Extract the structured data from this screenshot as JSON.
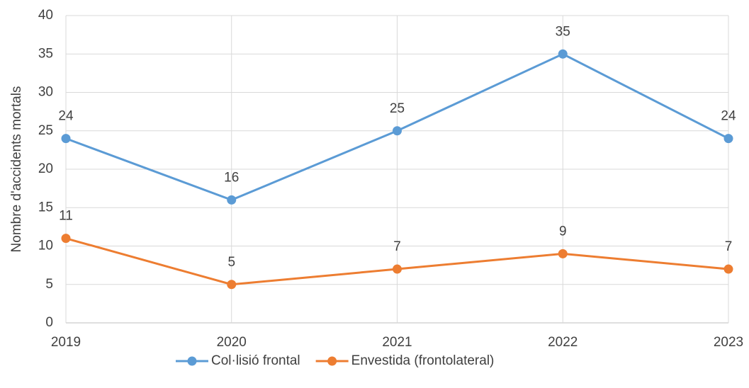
{
  "chart_data": {
    "type": "line",
    "y_label": "Nombre d'accidents mortals",
    "x": [
      2019,
      2020,
      2021,
      2022,
      2023
    ],
    "series": [
      {
        "name": "Col·lisió frontal",
        "color": "#5b9bd5",
        "values": [
          24,
          16,
          25,
          35,
          24
        ]
      },
      {
        "name": "Envestida (frontolateral)",
        "color": "#ed7d31",
        "values": [
          11,
          5,
          7,
          9,
          7
        ]
      }
    ],
    "xlim": [
      2019,
      2023
    ],
    "xticks": [
      2019,
      2020,
      2021,
      2022,
      2023
    ],
    "ylim": [
      0,
      40
    ],
    "yticks": [
      0,
      5,
      10,
      15,
      20,
      25,
      30,
      35,
      40
    ],
    "grid": true,
    "legend": "bottom"
  }
}
